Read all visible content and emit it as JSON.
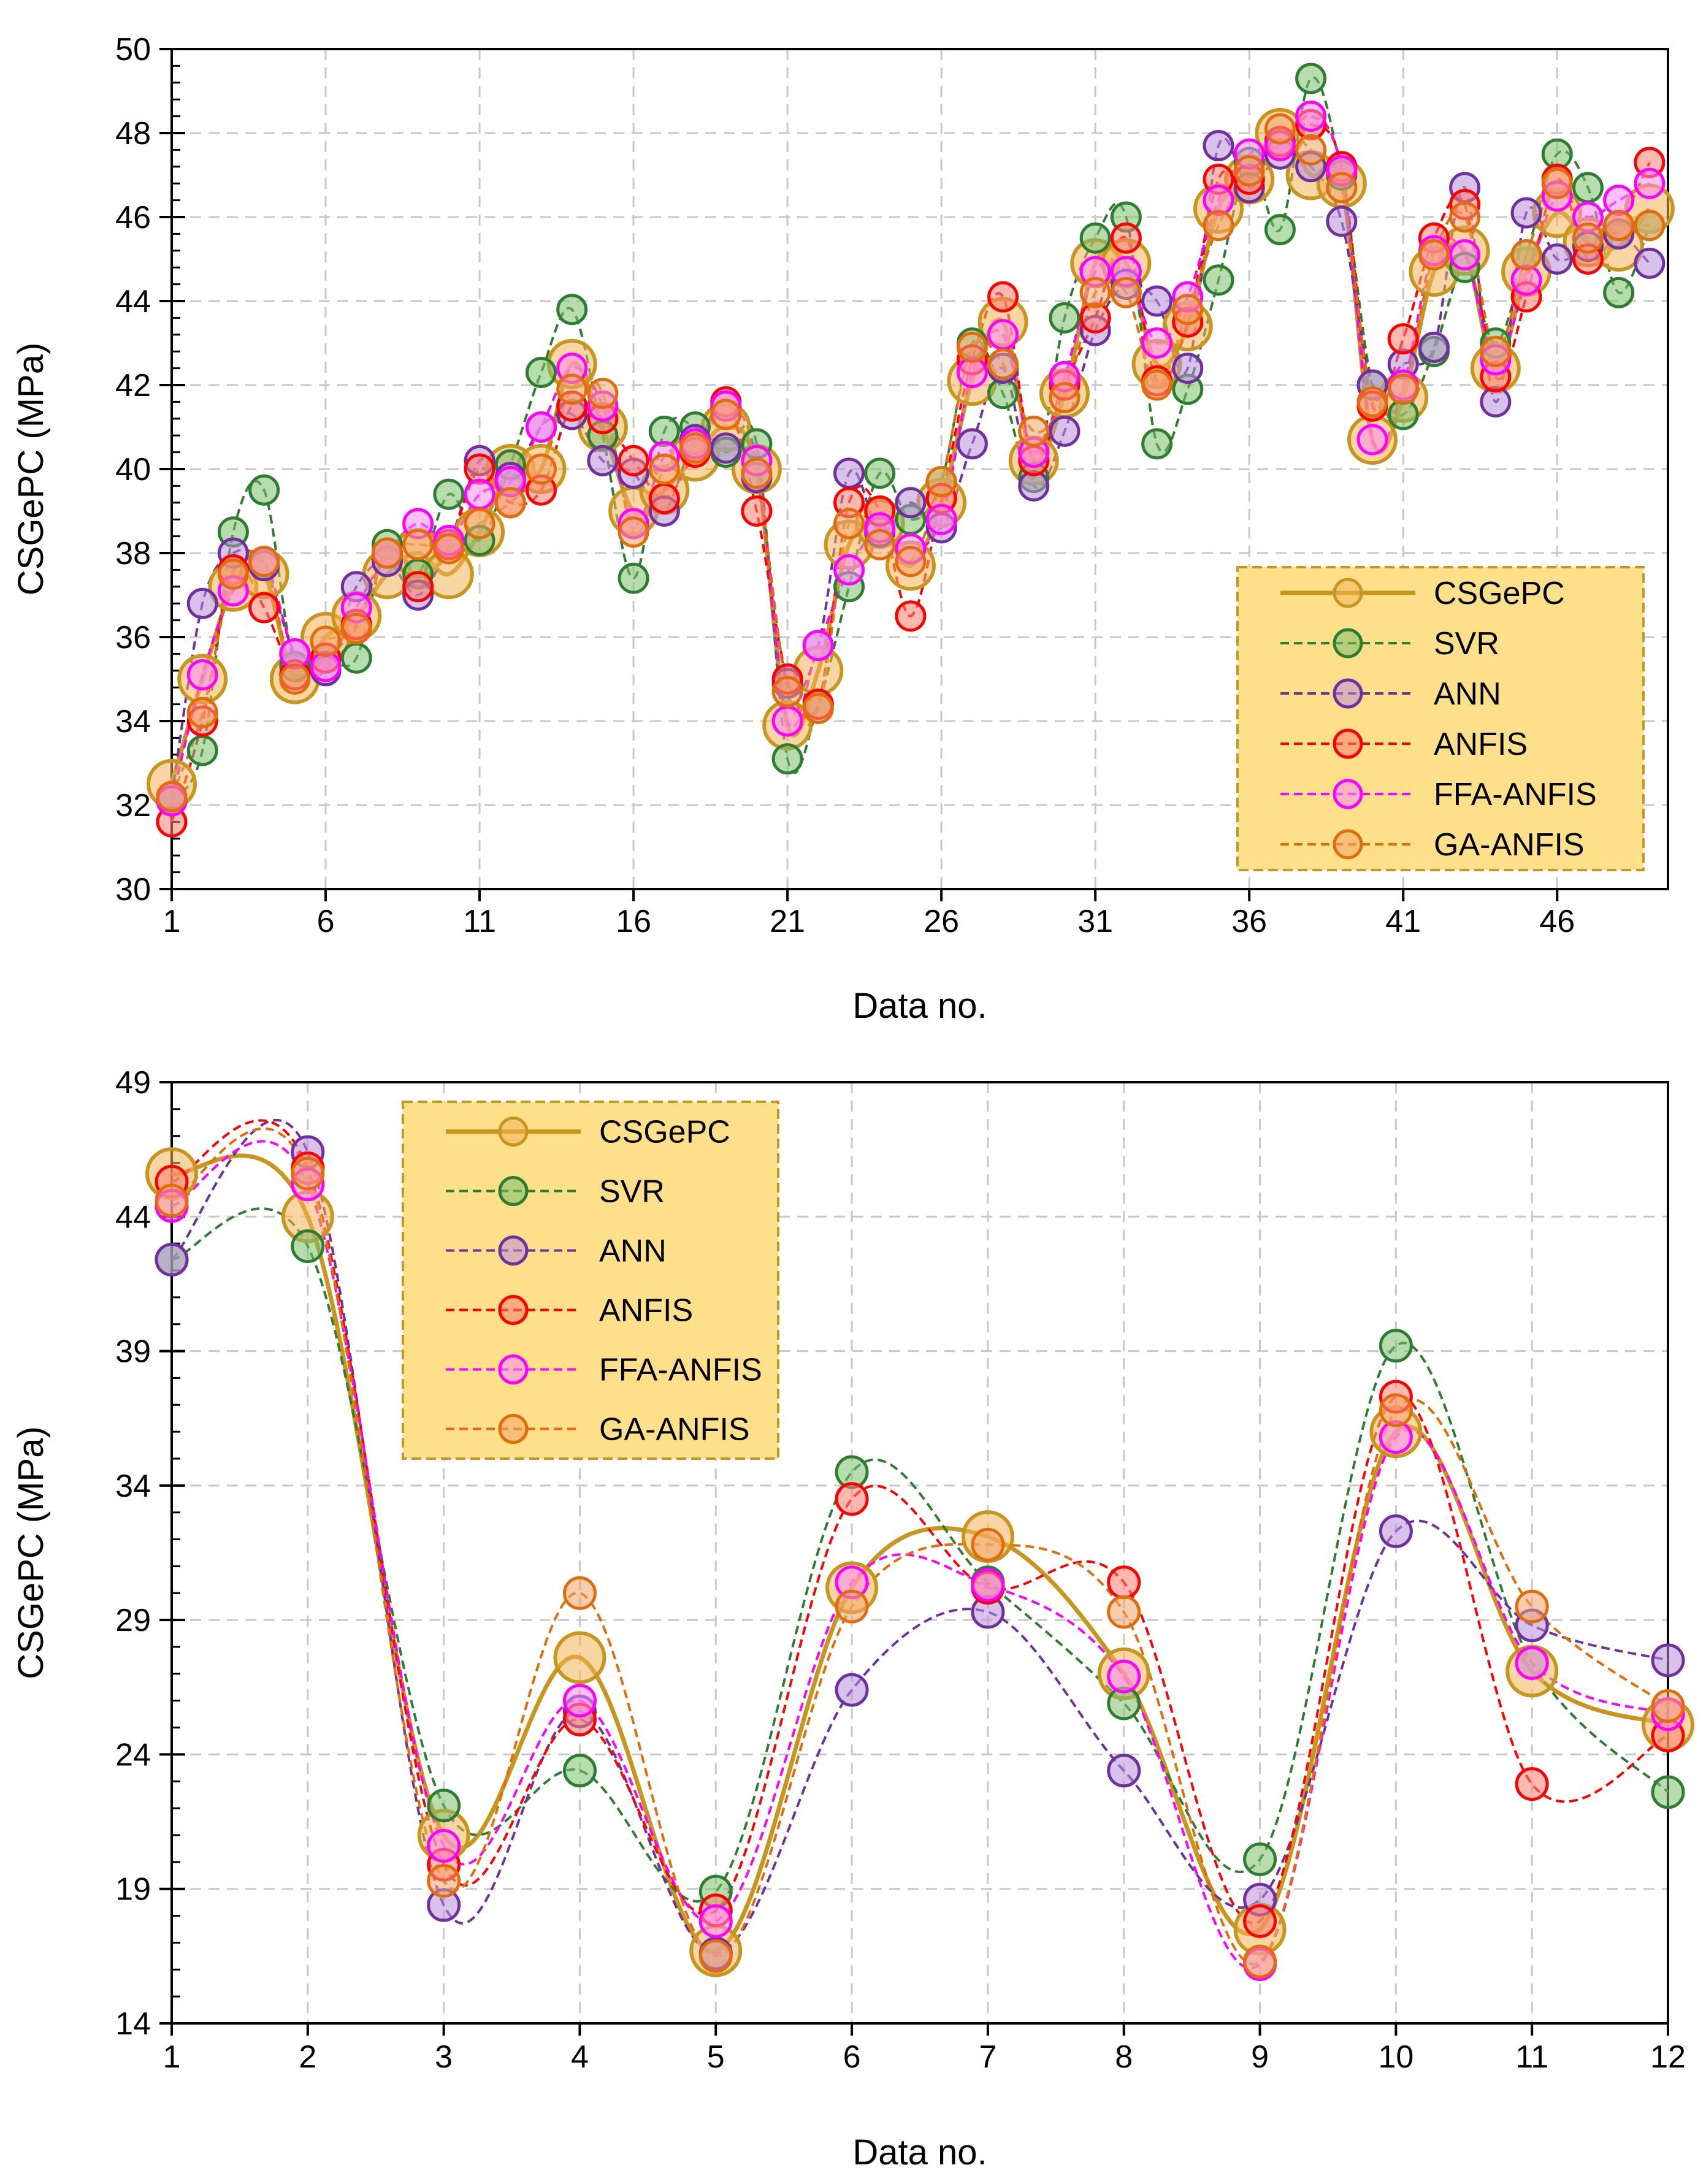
{
  "series_style": [
    {
      "name": "CSGePC",
      "color": "#c8961e",
      "fill": "#f2b55a",
      "dash": "solid"
    },
    {
      "name": "SVR",
      "color": "#2e7d32",
      "fill": "#7bbf6a",
      "dash": "dashed"
    },
    {
      "name": "ANN",
      "color": "#7030a0",
      "fill": "#b98fd8",
      "dash": "dashed"
    },
    {
      "name": "ANFIS",
      "color": "#ff0000",
      "fill": "#ff8070",
      "dash": "dashed"
    },
    {
      "name": "FFA-ANFIS",
      "color": "#ff00ff",
      "fill": "#ff8cf2",
      "dash": "dashed"
    },
    {
      "name": "GA-ANFIS",
      "color": "#e36c0a",
      "fill": "#f0a56a",
      "dash": "dashed"
    }
  ],
  "legend_colors": {
    "background": "#ffe08a",
    "border": "#c8961e"
  },
  "chart_data": [
    {
      "type": "line",
      "xlabel": "Data no.",
      "ylabel": "CSGePC (MPa)",
      "xlim": [
        1,
        49.6
      ],
      "ylim": [
        30,
        50
      ],
      "yticks": [
        30,
        32,
        34,
        36,
        38,
        40,
        42,
        44,
        46,
        48,
        50
      ],
      "xticks": [
        1,
        6,
        11,
        16,
        21,
        26,
        31,
        36,
        41,
        46
      ],
      "grid": true,
      "legend_position": "bottom-right",
      "x": [
        1,
        2,
        3,
        4,
        5,
        6,
        7,
        8,
        9,
        10,
        11,
        12,
        13,
        14,
        15,
        16,
        17,
        18,
        19,
        20,
        21,
        22,
        23,
        24,
        25,
        26,
        27,
        28,
        29,
        30,
        31,
        32,
        33,
        34,
        35,
        36,
        37,
        38,
        39,
        40,
        41,
        42,
        43,
        44,
        45,
        46,
        47,
        48,
        49
      ],
      "series": [
        {
          "name": "CSGePC",
          "values": [
            32.5,
            35,
            37.2,
            37.5,
            35,
            36,
            36.5,
            37.5,
            38,
            37.5,
            38.5,
            40,
            40,
            42.5,
            41,
            39,
            39.5,
            40.3,
            41,
            40,
            33.9,
            35.2,
            38.2,
            38.7,
            37.7,
            39.2,
            42.1,
            43.5,
            40.2,
            41.8,
            44.9,
            44.9,
            42.5,
            43.4,
            46.2,
            46.9,
            48,
            47,
            46.8,
            40.7,
            41.7,
            44.7,
            45.2,
            42.4,
            44.7,
            46.1,
            45.4,
            45.3,
            46.2
          ]
        },
        {
          "name": "SVR",
          "values": [
            32.1,
            33.3,
            38.5,
            39.5,
            35.3,
            35.5,
            35.5,
            38.2,
            37.5,
            39.4,
            38.3,
            40.1,
            42.3,
            43.8,
            40.8,
            37.4,
            40.9,
            41,
            40.4,
            40.6,
            33.1,
            34.4,
            37.2,
            39.9,
            38.8,
            39.7,
            43,
            41.8,
            39.8,
            43.6,
            45.5,
            46,
            40.6,
            41.9,
            44.5,
            47.3,
            45.7,
            49.3,
            47,
            42,
            41.3,
            42.8,
            44.8,
            43,
            45.1,
            47.5,
            46.7,
            44.2,
            45.8
          ]
        },
        {
          "name": "ANN",
          "values": [
            32.2,
            36.8,
            38,
            37.7,
            35.6,
            35.2,
            37.2,
            37.8,
            37,
            38.2,
            40.2,
            39.8,
            41,
            41.3,
            40.2,
            39.9,
            39,
            40.7,
            40.5,
            39.8,
            34.9,
            35.8,
            39.9,
            38.5,
            39.2,
            38.6,
            40.6,
            42.4,
            39.6,
            40.9,
            43.3,
            44.4,
            44,
            42.4,
            47.7,
            46.7,
            47.5,
            47.2,
            45.9,
            42,
            42.5,
            42.9,
            46.7,
            41.6,
            46.1,
            45,
            45.3,
            45.6,
            44.9
          ]
        },
        {
          "name": "ANFIS",
          "values": [
            31.6,
            34,
            37.6,
            36.7,
            35.1,
            35.5,
            36.3,
            38,
            37.2,
            38.2,
            40,
            39.2,
            39.5,
            41.5,
            41.2,
            40.2,
            39.3,
            40.4,
            41.6,
            39,
            35,
            34.4,
            39.2,
            39,
            36.5,
            39.3,
            42.6,
            44.1,
            40.2,
            42,
            43.6,
            45.5,
            42.1,
            43.5,
            46.9,
            46.9,
            47.8,
            48.2,
            47.2,
            41.5,
            43.1,
            45.5,
            46.3,
            42.2,
            44.1,
            46.9,
            45,
            45.8,
            47.3
          ]
        },
        {
          "name": "FFA-ANFIS",
          "values": [
            32.1,
            35.1,
            37.1,
            37.8,
            35.6,
            35.3,
            36.7,
            38,
            38.7,
            38.3,
            39.4,
            39.7,
            41,
            42.4,
            41.5,
            38.7,
            40.3,
            40.6,
            41.5,
            40.2,
            34,
            35.8,
            37.6,
            38.6,
            38.1,
            38.8,
            42.3,
            43.2,
            40.4,
            42.2,
            44.7,
            44.7,
            43,
            44.1,
            46.4,
            47.5,
            47.7,
            48.4,
            47.1,
            40.7,
            42,
            45.2,
            45.1,
            42.6,
            44.5,
            46.5,
            46,
            46.4,
            46.8
          ]
        },
        {
          "name": "GA-ANFIS",
          "values": [
            32.2,
            34.2,
            37.5,
            37.8,
            35,
            35.9,
            36.2,
            38,
            38.2,
            38.1,
            38.7,
            39.2,
            40,
            41.9,
            41.8,
            38.5,
            40,
            40.5,
            41.3,
            39.9,
            34.7,
            34.3,
            38.7,
            38.2,
            37.8,
            39.7,
            42.9,
            42.5,
            40.9,
            41.7,
            44.2,
            44.2,
            42,
            43.8,
            45.8,
            47.1,
            48.1,
            47.6,
            46.7,
            41.6,
            41.9,
            45.1,
            46,
            42.8,
            45.1,
            46.8,
            45.5,
            45.8,
            45.8
          ]
        }
      ]
    },
    {
      "type": "line",
      "xlabel": "Data no.",
      "ylabel": "CSGePC (MPa)",
      "xlim": [
        1,
        12
      ],
      "ylim": [
        14,
        49
      ],
      "yticks": [
        14,
        19,
        24,
        29,
        34,
        39,
        44,
        49
      ],
      "xticks": [
        1,
        2,
        3,
        4,
        5,
        6,
        7,
        8,
        9,
        10,
        11,
        12
      ],
      "grid": true,
      "legend_position": "top-left",
      "x": [
        1,
        2,
        3,
        4,
        5,
        6,
        7,
        8,
        9,
        10,
        11,
        12
      ],
      "series": [
        {
          "name": "CSGePC",
          "values": [
            45.6,
            44,
            21,
            27.6,
            16.7,
            30.2,
            32.1,
            27,
            17.5,
            36,
            27.1,
            25.1
          ]
        },
        {
          "name": "SVR",
          "values": [
            42.4,
            42.9,
            22.1,
            23.4,
            18.9,
            34.5,
            30.4,
            25.9,
            20.1,
            39.2,
            27.4,
            22.6
          ]
        },
        {
          "name": "ANN",
          "values": [
            42.4,
            46.4,
            18.4,
            25.6,
            16.6,
            26.4,
            29.3,
            23.4,
            18.6,
            32.3,
            28.8,
            27.5
          ]
        },
        {
          "name": "ANFIS",
          "values": [
            45.3,
            45.8,
            19.9,
            25.3,
            18.2,
            33.5,
            30.2,
            30.4,
            17.8,
            37.3,
            22.9,
            24.7
          ]
        },
        {
          "name": "FFA-ANFIS",
          "values": [
            44.4,
            45.2,
            20.6,
            26,
            17.8,
            30.4,
            30.3,
            26.9,
            16.2,
            35.8,
            27.4,
            25.5
          ]
        },
        {
          "name": "GA-ANFIS",
          "values": [
            44.6,
            45.6,
            19.3,
            30,
            16.5,
            29.5,
            31.8,
            29.3,
            16.3,
            36.8,
            29.5,
            25.8
          ]
        }
      ]
    }
  ]
}
